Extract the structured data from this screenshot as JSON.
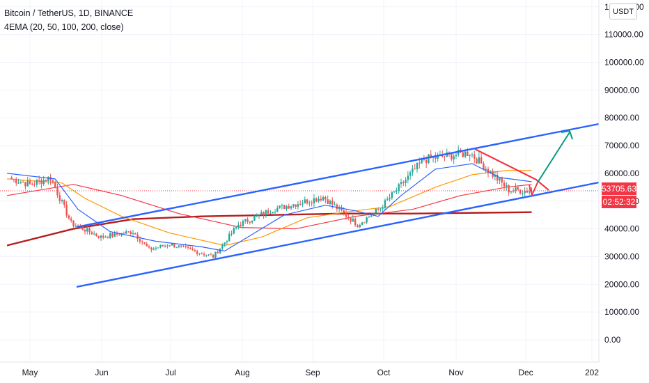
{
  "header": {
    "symbol_line": "Bitcoin / TetherUS, 1D, BINANCE",
    "indicator_line": "4EMA (20, 50, 100, 200, close)",
    "currency": "USDT"
  },
  "price_axis": {
    "labels": [
      "120000.00",
      "110000.00",
      "100000.00",
      "90000.00",
      "80000.00",
      "70000.00",
      "60000.00",
      "50000.00",
      "40000.00",
      "30000.00",
      "20000.00",
      "10000.00",
      "0.00"
    ]
  },
  "time_axis": {
    "labels": [
      "May",
      "Jun",
      "Jul",
      "Aug",
      "Sep",
      "Oct",
      "Nov",
      "Dec",
      "202"
    ]
  },
  "last_price": {
    "value": "53705.63",
    "countdown": "02:52:32",
    "color": "#f23645"
  },
  "colors": {
    "ema20": "#2962ff",
    "ema50": "#ff9800",
    "ema100": "#f23645",
    "ema200": "#b71c1c",
    "up": "#26a69a",
    "down": "#ef5350",
    "channel": "#2962ff",
    "wedge": "#f23645",
    "target_arrow": "#089981"
  },
  "chart_data": {
    "type": "candlestick",
    "symbol": "Bitcoin / TetherUS",
    "timeframe": "1D",
    "exchange": "BINANCE",
    "ylim": [
      -5000,
      122000
    ],
    "y_ticks": [
      0,
      10000,
      20000,
      30000,
      40000,
      50000,
      60000,
      70000,
      80000,
      90000,
      100000,
      110000,
      120000
    ],
    "x_ticks": [
      "May",
      "Jun",
      "Jul",
      "Aug",
      "Sep",
      "Oct",
      "Nov",
      "Dec",
      "202"
    ],
    "approx_close_path": [
      {
        "date": "Apr 23",
        "close": 58000
      },
      {
        "date": "May 1",
        "close": 56000
      },
      {
        "date": "May 10",
        "close": 58500
      },
      {
        "date": "May 19",
        "close": 42000
      },
      {
        "date": "Jun 1",
        "close": 37000
      },
      {
        "date": "Jun 15",
        "close": 39000
      },
      {
        "date": "Jun 22",
        "close": 32500
      },
      {
        "date": "Jul 1",
        "close": 34500
      },
      {
        "date": "Jul 20",
        "close": 30000
      },
      {
        "date": "Jul 31",
        "close": 41500
      },
      {
        "date": "Aug 15",
        "close": 47000
      },
      {
        "date": "Sep 6",
        "close": 51500
      },
      {
        "date": "Sep 21",
        "close": 41500
      },
      {
        "date": "Oct 1",
        "close": 47500
      },
      {
        "date": "Oct 20",
        "close": 65000
      },
      {
        "date": "Nov 9",
        "close": 67500
      },
      {
        "date": "Nov 26",
        "close": 54000
      },
      {
        "date": "Dec 6",
        "close": 53705.63
      }
    ],
    "indicators": {
      "name": "4EMA (20, 50, 100, 200, close)",
      "periods": [
        20,
        50,
        100,
        200
      ],
      "ema20_end": 57000,
      "ema50_end": 61000,
      "ema100_end": 56000,
      "ema200_end": 46000
    },
    "last_price": 53705.63,
    "annotations": {
      "ascending_channel": true,
      "falling_wedge": true,
      "breakout_target_arrow": true
    },
    "grid": true
  }
}
